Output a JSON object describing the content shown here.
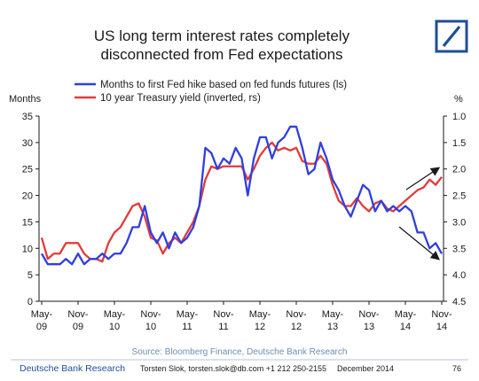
{
  "chart_data": {
    "type": "line",
    "title_lines": [
      "US long term interest rates completely",
      "disconnected from Fed expectations"
    ],
    "left_axis": {
      "label": "Months",
      "ylim": [
        0,
        35
      ],
      "ticks": [
        0,
        5,
        10,
        15,
        20,
        25,
        30,
        35
      ]
    },
    "right_axis": {
      "label": "%",
      "ylim": [
        4.5,
        1.0
      ],
      "inverted": true,
      "ticks": [
        "1.0",
        "1.5",
        "2.0",
        "2.5",
        "3.0",
        "3.5",
        "4.0",
        "4.5"
      ]
    },
    "x_ticks": [
      {
        "line1": "May-",
        "line2": "09"
      },
      {
        "line1": "Nov-",
        "line2": "09"
      },
      {
        "line1": "May-",
        "line2": "10"
      },
      {
        "line1": "Nov-",
        "line2": "10"
      },
      {
        "line1": "May-",
        "line2": "11"
      },
      {
        "line1": "Nov-",
        "line2": "11"
      },
      {
        "line1": "May-",
        "line2": "12"
      },
      {
        "line1": "Nov-",
        "line2": "12"
      },
      {
        "line1": "May-",
        "line2": "13"
      },
      {
        "line1": "Nov-",
        "line2": "13"
      },
      {
        "line1": "May-",
        "line2": "14"
      },
      {
        "line1": "Nov-",
        "line2": "14"
      }
    ],
    "series": [
      {
        "name": "Months to first Fed hike based on fed funds futures (ls)",
        "color": "#2f3fe0",
        "axis": "left",
        "values": [
          9,
          7,
          7,
          7,
          8,
          7,
          9,
          7,
          8,
          8,
          9,
          8,
          9,
          9,
          11,
          14,
          14,
          18,
          13,
          11,
          13,
          10,
          13,
          11,
          12,
          14,
          18,
          29,
          28,
          25,
          27,
          26,
          29,
          27,
          20,
          27,
          31,
          31,
          27,
          30,
          31,
          33,
          33,
          29,
          24,
          25,
          30,
          27,
          23,
          21,
          18,
          16,
          19,
          22,
          21,
          17,
          19,
          17,
          18,
          17,
          18,
          17,
          13,
          13,
          10,
          11,
          9
        ]
      },
      {
        "name": "10 year Treasury yield (inverted, rs)",
        "color": "#e23b3b",
        "axis": "right",
        "values": [
          3.3,
          3.7,
          3.6,
          3.6,
          3.4,
          3.4,
          3.4,
          3.6,
          3.7,
          3.7,
          3.75,
          3.4,
          3.2,
          3.1,
          2.9,
          2.7,
          2.65,
          2.9,
          3.3,
          3.35,
          3.6,
          3.4,
          3.3,
          3.4,
          3.2,
          3.0,
          2.7,
          2.2,
          1.95,
          2.0,
          1.95,
          1.95,
          1.95,
          1.95,
          2.2,
          2.0,
          1.75,
          1.6,
          1.5,
          1.65,
          1.6,
          1.65,
          1.6,
          1.85,
          1.9,
          1.9,
          1.75,
          1.9,
          2.3,
          2.6,
          2.7,
          2.7,
          2.55,
          2.7,
          2.8,
          2.65,
          2.6,
          2.75,
          2.8,
          2.7,
          2.6,
          2.5,
          2.4,
          2.35,
          2.2,
          2.3,
          2.15
        ]
      }
    ],
    "arrows": [
      {
        "direction": "up",
        "series": "10 year Treasury yield (inverted, rs)"
      },
      {
        "direction": "down",
        "series": "Months to first Fed hike based on fed funds futures (ls)"
      }
    ],
    "grid": false,
    "legend_placement": "top-left"
  },
  "source": "Source: Bloomberg Finance, Deutsche Bank Research",
  "footer": {
    "brand": "Deutsche Bank Research",
    "author": "Torsten Slok, torsten.slok@db.com  +1 212 250-2155",
    "date": "December 2014",
    "page": "76"
  },
  "colors": {
    "logo": "#1f4e9a",
    "source_text": "#6b8fb5",
    "axis": "#1a1a1a"
  },
  "icons": {
    "logo": "deutsche-bank-logo-icon"
  }
}
